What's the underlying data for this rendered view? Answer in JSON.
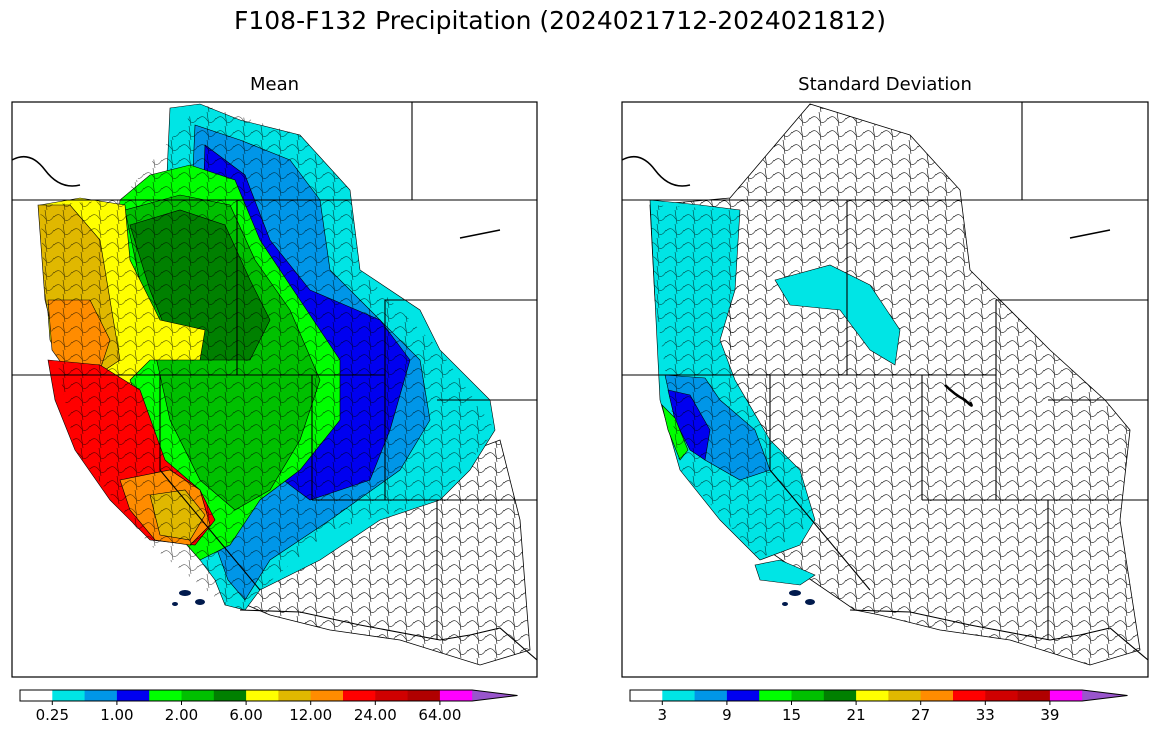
{
  "title": "F108-F132 Precipitation (2024021712-2024021812)",
  "panels": [
    {
      "title": "Mean",
      "colorbar": {
        "tick_labels": [
          "0.25",
          "1.00",
          "2.00",
          "6.00",
          "12.00",
          "24.00",
          "64.00"
        ],
        "colors": [
          "#ffffff",
          "#00e5e5",
          "#0096e8",
          "#0000f0",
          "#00ff00",
          "#00c000",
          "#008000",
          "#ffff00",
          "#e0b800",
          "#ff8c00",
          "#ff0000",
          "#d00000",
          "#b00000",
          "#ff00ff",
          "#9955cc"
        ]
      }
    },
    {
      "title": "Standard Deviation",
      "colorbar": {
        "tick_labels": [
          "3",
          "9",
          "15",
          "21",
          "27",
          "33",
          "39"
        ],
        "colors": [
          "#ffffff",
          "#00e5e5",
          "#0096e8",
          "#0000f0",
          "#00ff00",
          "#00c000",
          "#008000",
          "#ffff00",
          "#e0b800",
          "#ff8c00",
          "#ff0000",
          "#d00000",
          "#b00000",
          "#ff00ff",
          "#9955cc"
        ]
      }
    }
  ]
}
